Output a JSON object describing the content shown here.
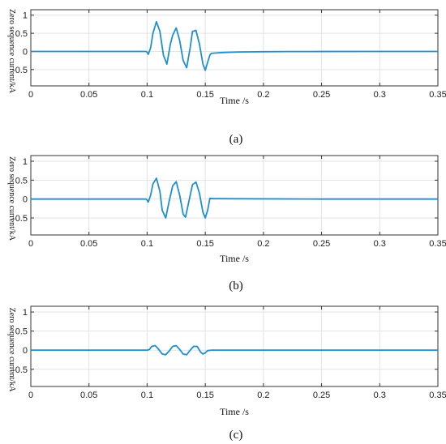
{
  "chart_data": [
    {
      "type": "line",
      "caption": "(a)",
      "xlabel": "Time /s",
      "ylabel": "Zero sequence current/kA",
      "xlim": [
        0,
        0.35
      ],
      "ylim": [
        -0.95,
        1.15
      ],
      "xticks": [
        "0",
        "0.05",
        "0.1",
        "0.15",
        "0.2",
        "0.25",
        "0.3",
        "0.35"
      ],
      "yticks": [
        "1",
        "0.5",
        "0",
        "-0.5"
      ],
      "grid": true,
      "color": "#1f8fd0",
      "series": [
        {
          "x": [
            0,
            0.099,
            0.1,
            0.101,
            0.103,
            0.105,
            0.108,
            0.111,
            0.114,
            0.117,
            0.12,
            0.122,
            0.125,
            0.128,
            0.131,
            0.134,
            0.137,
            0.139,
            0.142,
            0.145,
            0.148,
            0.15,
            0.152,
            0.154,
            0.155,
            0.156,
            0.158,
            0.165,
            0.18,
            0.2,
            0.22,
            0.25,
            0.3,
            0.35
          ],
          "y": [
            0,
            0,
            -0.02,
            -0.08,
            0.1,
            0.5,
            0.82,
            0.55,
            -0.1,
            -0.35,
            0.2,
            0.45,
            0.65,
            0.3,
            -0.25,
            -0.45,
            0.1,
            0.55,
            0.58,
            0.2,
            -0.35,
            -0.52,
            -0.3,
            -0.1,
            -0.06,
            -0.05,
            -0.045,
            -0.03,
            -0.015,
            -0.008,
            -0.004,
            -0.002,
            0,
            0
          ]
        }
      ]
    },
    {
      "type": "line",
      "caption": "(b)",
      "xlabel": "Time /s",
      "ylabel": "Zero sequence current/kA",
      "xlim": [
        0,
        0.35
      ],
      "ylim": [
        -0.95,
        1.15
      ],
      "xticks": [
        "0",
        "0.05",
        "0.1",
        "0.15",
        "0.2",
        "0.25",
        "0.3",
        "0.35"
      ],
      "yticks": [
        "1",
        "0.5",
        "0",
        "-0.5"
      ],
      "grid": true,
      "color": "#1f8fd0",
      "series": [
        {
          "x": [
            0,
            0.099,
            0.1,
            0.101,
            0.103,
            0.105,
            0.108,
            0.111,
            0.113,
            0.116,
            0.119,
            0.122,
            0.125,
            0.128,
            0.131,
            0.133,
            0.136,
            0.139,
            0.142,
            0.145,
            0.148,
            0.15,
            0.152,
            0.154,
            0.156,
            0.16,
            0.2,
            0.25,
            0.3,
            0.35
          ],
          "y": [
            0,
            0,
            -0.03,
            -0.08,
            0.1,
            0.4,
            0.55,
            0.2,
            -0.3,
            -0.5,
            -0.05,
            0.35,
            0.46,
            0.1,
            -0.4,
            -0.48,
            -0.05,
            0.38,
            0.45,
            0.15,
            -0.35,
            -0.5,
            -0.3,
            0.02,
            0.01,
            0.01,
            0.005,
            0,
            0,
            0
          ]
        }
      ]
    },
    {
      "type": "line",
      "caption": "(c)",
      "xlabel": "Time /s",
      "ylabel": "Zero sequence current/kA",
      "xlim": [
        0,
        0.35
      ],
      "ylim": [
        -0.95,
        1.15
      ],
      "xticks": [
        "0",
        "0.05",
        "0.1",
        "0.15",
        "0.2",
        "0.25",
        "0.3",
        "0.35"
      ],
      "yticks": [
        "1",
        "0.5",
        "0",
        "-0.5"
      ],
      "grid": true,
      "color": "#1f8fd0",
      "series": [
        {
          "x": [
            0,
            0.099,
            0.1,
            0.102,
            0.104,
            0.107,
            0.11,
            0.113,
            0.116,
            0.119,
            0.122,
            0.125,
            0.128,
            0.131,
            0.134,
            0.137,
            0.14,
            0.143,
            0.146,
            0.148,
            0.15,
            0.152,
            0.155,
            0.35
          ],
          "y": [
            0,
            0,
            0,
            0.02,
            0.1,
            0.12,
            0.02,
            -0.1,
            -0.12,
            -0.02,
            0.1,
            0.12,
            0.02,
            -0.1,
            -0.12,
            0,
            0.1,
            0.1,
            -0.05,
            -0.1,
            -0.07,
            -0.01,
            0,
            0
          ]
        }
      ]
    }
  ]
}
